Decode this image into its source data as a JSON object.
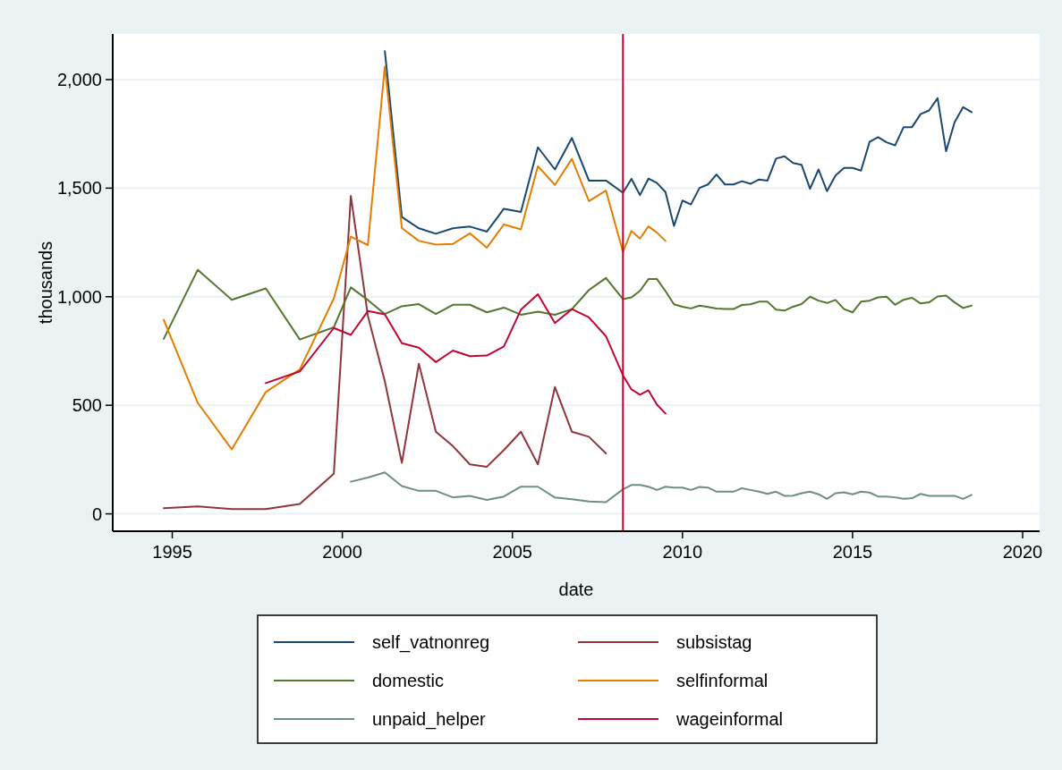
{
  "chart_data": {
    "type": "line",
    "xlabel": "date",
    "ylabel": "thousands",
    "xlim": [
      1993.25,
      2020.5
    ],
    "xticks": [
      1995,
      2000,
      2005,
      2010,
      2015,
      2020
    ],
    "ylim": [
      -80,
      2210
    ],
    "yticks": [
      0,
      500,
      {
        "value": 1000,
        "label": "1,000"
      },
      {
        "value": 1500,
        "label": "1,500"
      },
      {
        "value": 2000,
        "label": "2,000"
      }
    ],
    "grid": "y",
    "legend": "bottom",
    "line_style": "solid",
    "marker": "none",
    "ref_lines": [
      {
        "axis": "x",
        "value": 2008.25,
        "color": "#c10534"
      }
    ],
    "series": [
      {
        "name": "self_vatnonreg",
        "color": "#1a476f",
        "x": [
          2001.25,
          2001.75,
          2002.25,
          2002.75,
          2003.25,
          2003.75,
          2004.25,
          2004.75,
          2005.25,
          2005.75,
          2006.25,
          2006.75,
          2007.25,
          2007.75,
          2008.25,
          2008.5,
          2008.75,
          2009.0,
          2009.25,
          2009.5,
          2009.75,
          2010.0,
          2010.25,
          2010.5,
          2010.75,
          2011.0,
          2011.25,
          2011.5,
          2011.75,
          2012.0,
          2012.25,
          2012.5,
          2012.75,
          2013.0,
          2013.25,
          2013.5,
          2013.75,
          2014.0,
          2014.25,
          2014.5,
          2014.75,
          2015.0,
          2015.25,
          2015.5,
          2015.75,
          2016.0,
          2016.25,
          2016.5,
          2016.75,
          2017.0,
          2017.25,
          2017.5,
          2017.75,
          2018.0,
          2018.25,
          2018.5
        ],
        "values": [
          2131,
          1367,
          1315,
          1290,
          1315,
          1323,
          1300,
          1405,
          1390,
          1688,
          1586,
          1731,
          1535,
          1535,
          1479,
          1543,
          1468,
          1544,
          1524,
          1482,
          1326,
          1443,
          1425,
          1501,
          1517,
          1563,
          1517,
          1517,
          1532,
          1520,
          1540,
          1535,
          1636,
          1647,
          1616,
          1608,
          1497,
          1586,
          1486,
          1558,
          1593,
          1593,
          1581,
          1713,
          1735,
          1711,
          1697,
          1781,
          1781,
          1841,
          1858,
          1914,
          1670,
          1803,
          1873,
          1850
        ]
      },
      {
        "name": "subsistag",
        "color": "#90353b",
        "x": [
          1994.75,
          1995.75,
          1996.75,
          1997.75,
          1998.75,
          1999.75,
          2000.25,
          2000.75,
          2001.25,
          2001.75,
          2002.25,
          2002.75,
          2003.25,
          2003.75,
          2004.25,
          2004.75,
          2005.25,
          2005.75,
          2006.25,
          2006.75,
          2007.25,
          2007.75
        ],
        "values": [
          26,
          34,
          22,
          22,
          46,
          185,
          1464,
          913,
          610,
          235,
          691,
          378,
          312,
          228,
          217,
          294,
          378,
          228,
          584,
          378,
          355,
          278
        ]
      },
      {
        "name": "domestic",
        "color": "#55752f",
        "x": [
          1994.75,
          1995.75,
          1996.75,
          1997.75,
          1998.75,
          1999.75,
          2000.25,
          2000.75,
          2001.25,
          2001.75,
          2002.25,
          2002.75,
          2003.25,
          2003.75,
          2004.25,
          2004.75,
          2005.25,
          2005.75,
          2006.25,
          2006.75,
          2007.25,
          2007.75,
          2008.25,
          2008.5,
          2008.75,
          2009.0,
          2009.25,
          2009.5,
          2009.75,
          2010.0,
          2010.25,
          2010.5,
          2010.75,
          2011.0,
          2011.25,
          2011.5,
          2011.75,
          2012.0,
          2012.25,
          2012.5,
          2012.75,
          2013.0,
          2013.25,
          2013.5,
          2013.75,
          2014.0,
          2014.25,
          2014.5,
          2014.75,
          2015.0,
          2015.25,
          2015.5,
          2015.75,
          2016.0,
          2016.25,
          2016.5,
          2016.75,
          2017.0,
          2017.25,
          2017.5,
          2017.75,
          2018.0,
          2018.25,
          2018.5
        ],
        "values": [
          806,
          1124,
          986,
          1038,
          803,
          859,
          1043,
          985,
          920,
          956,
          966,
          920,
          963,
          963,
          928,
          950,
          917,
          931,
          917,
          943,
          1031,
          1086,
          989,
          997,
          1027,
          1081,
          1081,
          1026,
          965,
          954,
          946,
          959,
          953,
          946,
          943,
          943,
          962,
          965,
          977,
          977,
          940,
          936,
          954,
          966,
          1000,
          982,
          971,
          985,
          943,
          928,
          977,
          982,
          997,
          1000,
          963,
          986,
          995,
          969,
          974,
          1001,
          1005,
          974,
          948,
          959
        ]
      },
      {
        "name": "selfinformal",
        "color": "#e37e00",
        "x": [
          1994.75,
          1995.75,
          1996.75,
          1997.75,
          1998.75,
          1999.75,
          2000.25,
          2000.75,
          2001.25,
          2001.75,
          2002.25,
          2002.75,
          2003.25,
          2003.75,
          2004.25,
          2004.75,
          2005.25,
          2005.75,
          2006.25,
          2006.75,
          2007.25,
          2007.75,
          2008.25,
          2008.5,
          2008.75,
          2009.0,
          2009.25,
          2009.5
        ],
        "values": [
          894,
          511,
          297,
          561,
          665,
          992,
          1277,
          1238,
          2060,
          1316,
          1257,
          1240,
          1243,
          1292,
          1226,
          1333,
          1310,
          1601,
          1515,
          1635,
          1440,
          1489,
          1206,
          1303,
          1268,
          1324,
          1295,
          1257
        ]
      },
      {
        "name": "unpaid_helper",
        "color": "#6e8e84",
        "x": [
          2000.25,
          2000.75,
          2001.25,
          2001.75,
          2002.25,
          2002.75,
          2003.25,
          2003.75,
          2004.25,
          2004.75,
          2005.25,
          2005.75,
          2006.25,
          2006.75,
          2007.25,
          2007.75,
          2008.25,
          2008.5,
          2008.75,
          2009.0,
          2009.25,
          2009.5,
          2009.75,
          2010.0,
          2010.25,
          2010.5,
          2010.75,
          2011.0,
          2011.25,
          2011.5,
          2011.75,
          2012.0,
          2012.25,
          2012.5,
          2012.75,
          2013.0,
          2013.25,
          2013.5,
          2013.75,
          2014.0,
          2014.25,
          2014.5,
          2014.75,
          2015.0,
          2015.25,
          2015.5,
          2015.75,
          2016.0,
          2016.25,
          2016.5,
          2016.75,
          2017.0,
          2017.25,
          2017.5,
          2017.75,
          2018.0,
          2018.25,
          2018.5
        ],
        "values": [
          148,
          167,
          191,
          128,
          106,
          106,
          76,
          83,
          64,
          80,
          125,
          125,
          75,
          67,
          57,
          54,
          113,
          133,
          133,
          125,
          110,
          125,
          121,
          121,
          110,
          124,
          121,
          102,
          102,
          102,
          118,
          110,
          102,
          92,
          102,
          83,
          84,
          95,
          102,
          90,
          69,
          95,
          99,
          90,
          102,
          98,
          80,
          80,
          76,
          69,
          72,
          92,
          83,
          83,
          83,
          83,
          69,
          87
        ]
      },
      {
        "name": "wageinformal",
        "color": "#c10534",
        "x": [
          1997.75,
          1998.75,
          1999.75,
          2000.25,
          2000.75,
          2001.25,
          2001.75,
          2002.25,
          2002.75,
          2003.25,
          2003.75,
          2004.25,
          2004.75,
          2005.25,
          2005.75,
          2006.25,
          2006.75,
          2007.25,
          2007.75,
          2008.25,
          2008.5,
          2008.75,
          2009.0,
          2009.25,
          2009.5
        ],
        "values": [
          602,
          656,
          856,
          824,
          934,
          919,
          786,
          765,
          699,
          752,
          726,
          729,
          771,
          940,
          1011,
          879,
          943,
          905,
          818,
          638,
          573,
          549,
          569,
          503,
          462
        ]
      }
    ]
  }
}
